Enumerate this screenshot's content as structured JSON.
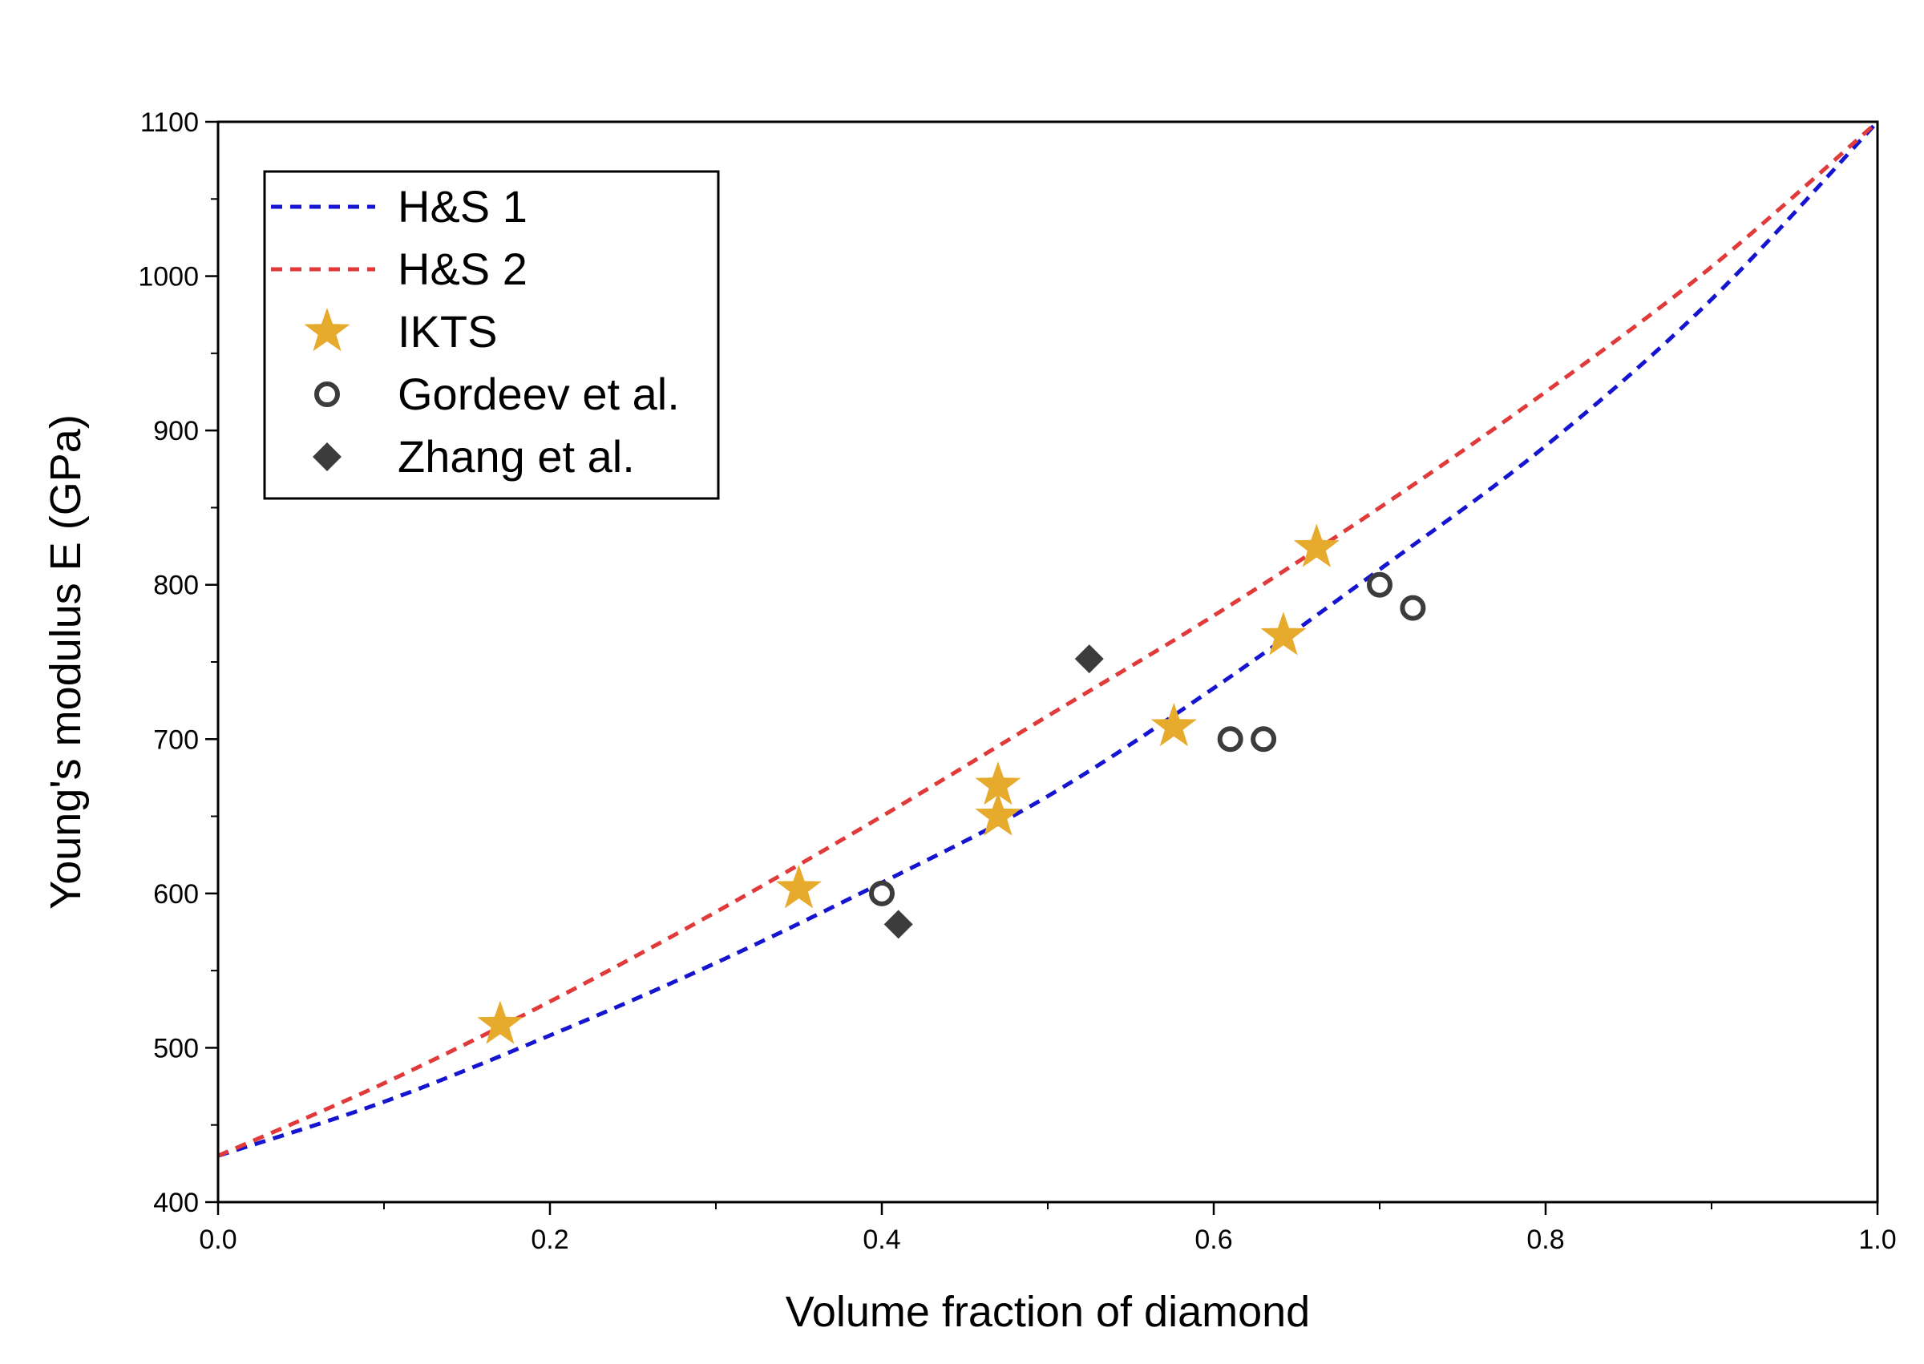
{
  "chart_data": {
    "type": "scatter",
    "title": "",
    "xlabel": "Volume fraction of diamond",
    "ylabel": "Young's modulus E (GPa)",
    "xlim": [
      0.0,
      1.0
    ],
    "ylim": [
      400,
      1100
    ],
    "x_ticks": [
      "0.0",
      "0.2",
      "0.4",
      "0.6",
      "0.8",
      "1.0"
    ],
    "y_ticks": [
      "400",
      "500",
      "600",
      "700",
      "800",
      "900",
      "1000",
      "1100"
    ],
    "grid": false,
    "legend_position": "top-left",
    "series": [
      {
        "name": "H&S 1",
        "kind": "line",
        "style": "dashed",
        "color": "#1515d0",
        "x": [
          0.0,
          0.1,
          0.2,
          0.3,
          0.4,
          0.5,
          0.6,
          0.7,
          0.8,
          0.9,
          1.0
        ],
        "y": [
          430,
          465,
          508,
          555,
          607,
          663,
          733,
          810,
          890,
          985,
          1100
        ]
      },
      {
        "name": "H&S 2",
        "kind": "line",
        "style": "dashed",
        "color": "#e03a3a",
        "x": [
          0.0,
          0.1,
          0.2,
          0.3,
          0.4,
          0.5,
          0.6,
          0.7,
          0.8,
          0.9,
          1.0
        ],
        "y": [
          430,
          477,
          530,
          588,
          650,
          715,
          780,
          850,
          925,
          1006,
          1100
        ]
      },
      {
        "name": "IKTS",
        "kind": "scatter",
        "marker": "star",
        "color": "#e6aa2c",
        "x": [
          0.17,
          0.35,
          0.47,
          0.47,
          0.576,
          0.642,
          0.662
        ],
        "y": [
          515,
          603,
          650,
          670,
          708,
          767,
          824
        ]
      },
      {
        "name": "Gordeev et al.",
        "kind": "scatter",
        "marker": "open-circle",
        "color": "#3c3c3c",
        "x": [
          0.4,
          0.61,
          0.63,
          0.7,
          0.72
        ],
        "y": [
          600,
          700,
          700,
          800,
          785
        ]
      },
      {
        "name": "Zhang et al.",
        "kind": "scatter",
        "marker": "diamond",
        "color": "#3c3c3c",
        "x": [
          0.41,
          0.525
        ],
        "y": [
          580,
          752
        ]
      }
    ]
  }
}
